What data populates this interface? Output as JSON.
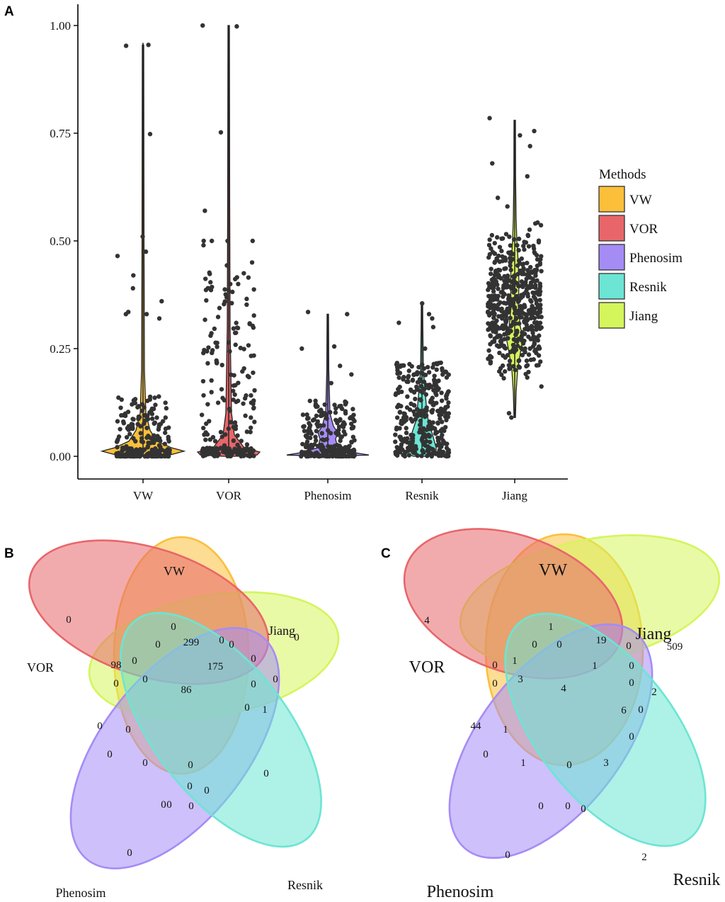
{
  "chart_data": [
    {
      "panel": "A",
      "type": "violin",
      "ylabel": "",
      "xlabel": "",
      "ylim": [
        0,
        1.0
      ],
      "yticks": [
        "0.00",
        "0.25",
        "0.50",
        "0.75",
        "1.00"
      ],
      "ytick_values": [
        0,
        0.25,
        0.5,
        0.75,
        1.0
      ],
      "categories": [
        "VW",
        "VOR",
        "Phenosim",
        "Resnik",
        "Jiang"
      ],
      "legend": {
        "title": "Methods",
        "placement": "right",
        "entries": [
          {
            "label": "VW",
            "color": "#FBBF3A"
          },
          {
            "label": "VOR",
            "color": "#E8666A"
          },
          {
            "label": "Phenosim",
            "color": "#A58CF5"
          },
          {
            "label": "Resnik",
            "color": "#6CE5D4"
          },
          {
            "label": "Jiang",
            "color": "#D5F55C"
          }
        ]
      },
      "series": [
        {
          "name": "VW",
          "color": "#FBBF3A",
          "min": 0.0,
          "max": 0.96,
          "median": 0.015,
          "bulk_upper": 0.1,
          "highlight_points": [
            0.955,
            0.953,
            0.748,
            0.51,
            0.475,
            0.465,
            0.42,
            0.39,
            0.36,
            0.335,
            0.33,
            0.33,
            0.32
          ]
        },
        {
          "name": "VOR",
          "color": "#E8666A",
          "min": 0.0,
          "max": 1.0,
          "median": 0.005,
          "bulk_upper": 0.5,
          "highlight_points": [
            1.0,
            0.998,
            0.752,
            0.57,
            0.5,
            0.5,
            0.5,
            0.5,
            0.49,
            0.45,
            0.415,
            0.4,
            0.4
          ]
        },
        {
          "name": "Phenosim",
          "color": "#A58CF5",
          "min": 0.0,
          "max": 0.33,
          "median": 0.005,
          "bulk_upper": 0.13,
          "highlight_points": [
            0.335,
            0.33,
            0.255,
            0.25,
            0.21,
            0.19,
            0.17
          ]
        },
        {
          "name": "Resnik",
          "color": "#6CE5D4",
          "min": 0.0,
          "max": 0.35,
          "median": 0.02,
          "bulk_upper": 0.22,
          "highlight_points": [
            0.355,
            0.33,
            0.32,
            0.31,
            0.3,
            0.25
          ]
        },
        {
          "name": "Jiang",
          "color": "#D5F55C",
          "min": 0.09,
          "max": 0.78,
          "median": 0.28,
          "bulk_upper": 0.57,
          "highlight_points": [
            0.785,
            0.755,
            0.745,
            0.72,
            0.68,
            0.65,
            0.6,
            0.58,
            0.1,
            0.09
          ]
        }
      ]
    },
    {
      "panel": "B",
      "type": "venn",
      "sets": [
        {
          "label": "VW",
          "color": "#FBBF3A"
        },
        {
          "label": "Jiang",
          "color": "#D5F55C"
        },
        {
          "label": "VOR",
          "color": "#E8666A"
        },
        {
          "label": "Phenosim",
          "color": "#A58CF5"
        },
        {
          "label": "Resnik",
          "color": "#6CE5D4"
        }
      ],
      "counts": [
        "0",
        "0",
        "0",
        "0",
        "0",
        "0",
        "299",
        "175",
        "0",
        "0",
        "0",
        "0",
        "98",
        "0",
        "0",
        "0",
        "86",
        "0",
        "0",
        "0",
        "0",
        "0",
        "1",
        "0",
        "0",
        "0",
        "0",
        "0",
        "0",
        "0",
        "0"
      ]
    },
    {
      "panel": "C",
      "type": "venn",
      "sets": [
        {
          "label": "VW",
          "color": "#FBBF3A"
        },
        {
          "label": "Jiang",
          "color": "#D5F55C"
        },
        {
          "label": "VOR",
          "color": "#E8666A"
        },
        {
          "label": "Phenosim",
          "color": "#A58CF5"
        },
        {
          "label": "Resnik",
          "color": "#6CE5D4"
        }
      ],
      "counts": [
        "1",
        "509",
        "4",
        "0",
        "2",
        "0",
        "19",
        "0",
        "1",
        "0",
        "0",
        "2",
        "0",
        "1",
        "3",
        "0",
        "4",
        "44",
        "0",
        "1",
        "6",
        "0",
        "0",
        "1",
        "0",
        "3",
        "0",
        "0",
        "0",
        "0",
        "0"
      ]
    }
  ]
}
